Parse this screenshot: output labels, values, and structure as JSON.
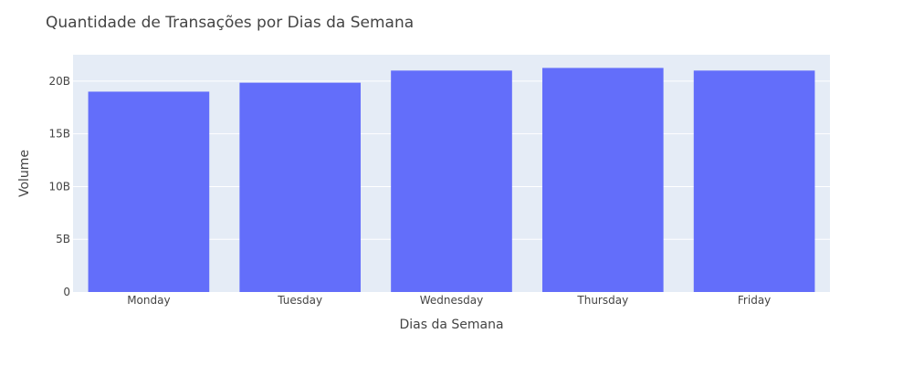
{
  "chart_data": {
    "type": "bar",
    "title": "Quantidade de Transações por Dias da Semana",
    "xlabel": "Dias da Semana",
    "ylabel": "Volume",
    "categories": [
      "Monday",
      "Tuesday",
      "Wednesday",
      "Thursday",
      "Friday"
    ],
    "values": [
      19000000000,
      19850000000,
      21000000000,
      21250000000,
      21000000000
    ],
    "ylim": [
      0,
      22500000000
    ],
    "yticks": [
      0,
      5000000000,
      10000000000,
      15000000000,
      20000000000
    ],
    "ytick_labels": [
      "0",
      "5B",
      "10B",
      "15B",
      "20B"
    ],
    "grid": true,
    "legend": false,
    "colors": {
      "bar": "#636efa",
      "plot_bg": "#e5ecf6",
      "grid": "#ffffff",
      "text": "#444444"
    }
  }
}
